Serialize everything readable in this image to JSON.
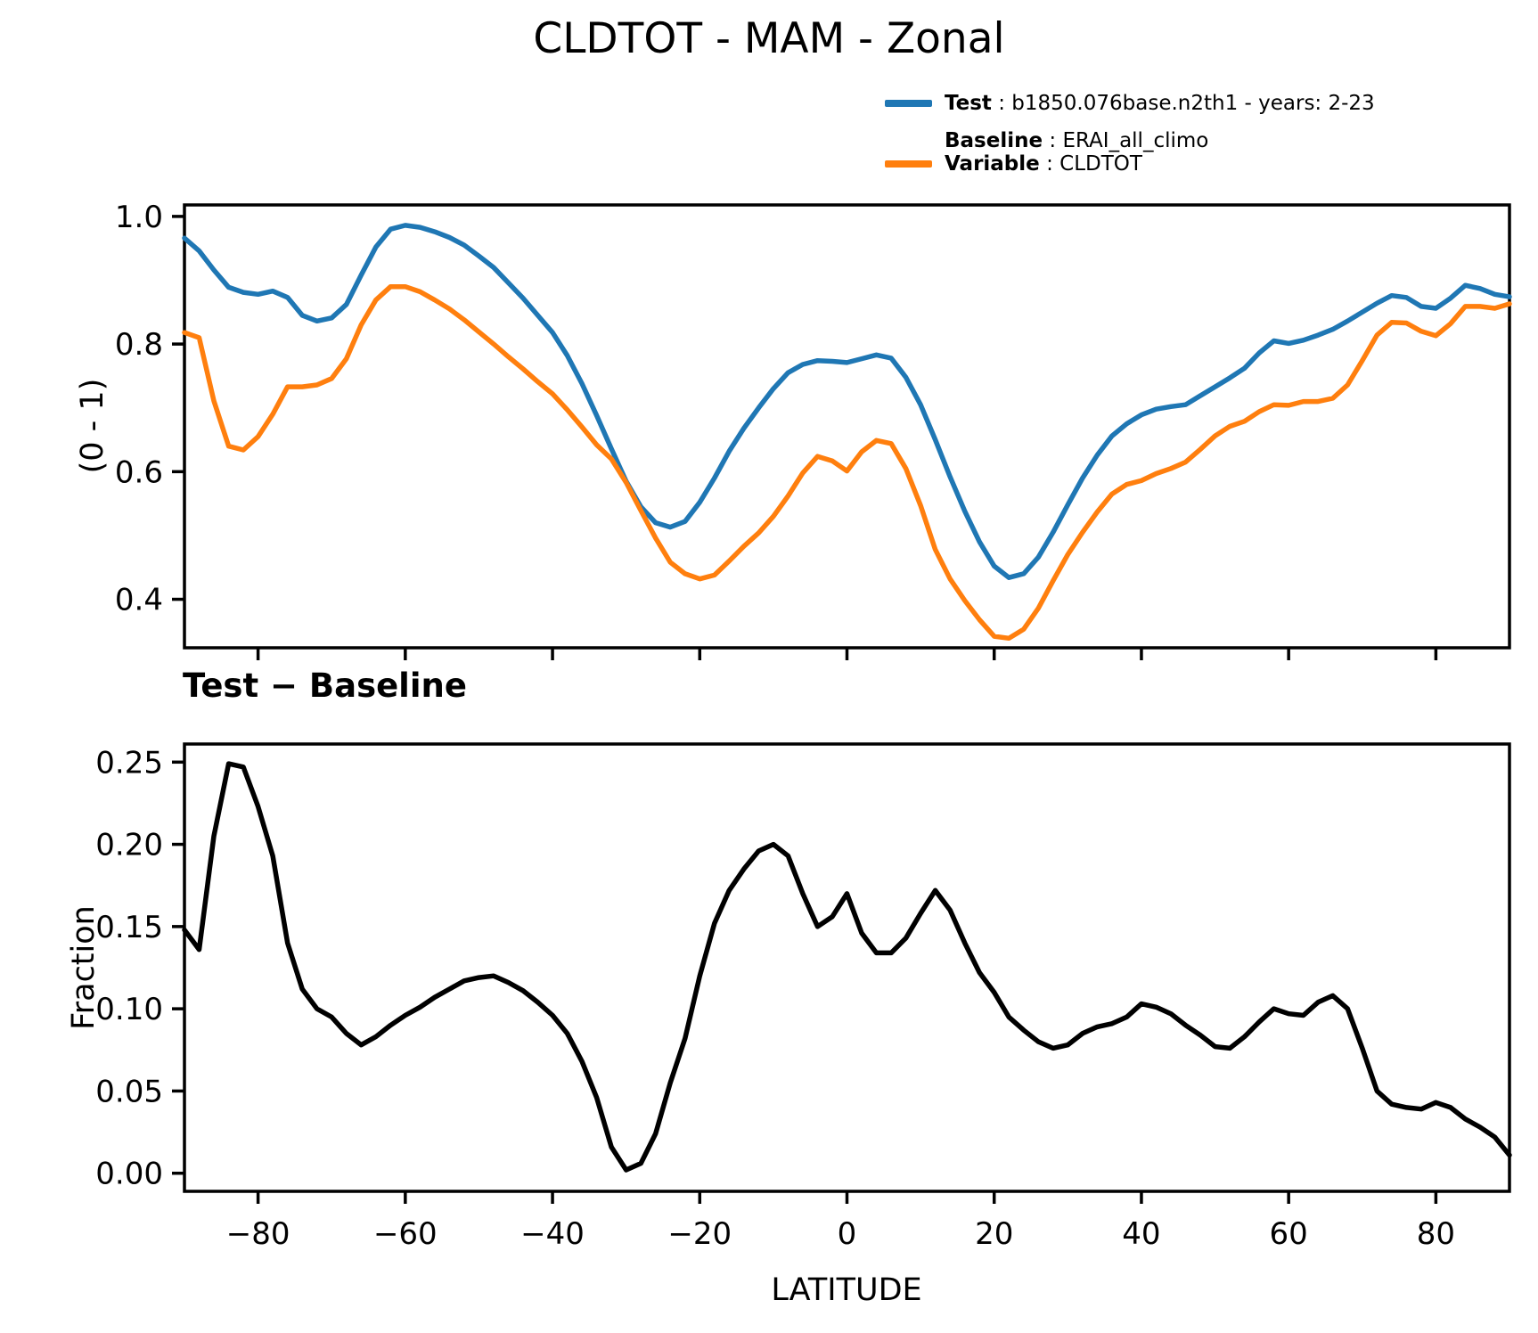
{
  "title": "CLDTOT - MAM - Zonal",
  "legend": {
    "test_label": "Test",
    "test_text": " : b1850.076base.n2th1 - years: 2-23",
    "baseline_label": "Baseline",
    "baseline_text": " : ERAI_all_climo",
    "variable_label": "Variable",
    "variable_text": " : CLDTOT",
    "test_color": "#1f77b4",
    "baseline_color": "#ff7f0e"
  },
  "chart_data": [
    {
      "type": "line",
      "title": "",
      "xlabel": "",
      "ylabel": "(0 - 1)",
      "grid": false,
      "x_range": [
        -90,
        90
      ],
      "ylim": [
        0.324,
        1.018
      ],
      "yticks": [
        1.0,
        0.8,
        0.6,
        0.4
      ],
      "ytick_labels": [
        "1.0",
        "0.8",
        "0.6",
        "0.4"
      ],
      "xticks": [
        -80,
        -60,
        -40,
        -20,
        0,
        20,
        40,
        60,
        80
      ],
      "xtick_labels_visible": false,
      "x": [
        -90,
        -88,
        -86,
        -84,
        -82,
        -80,
        -78,
        -76,
        -74,
        -72,
        -70,
        -68,
        -66,
        -64,
        -62,
        -60,
        -58,
        -56,
        -54,
        -52,
        -50,
        -48,
        -46,
        -44,
        -42,
        -40,
        -38,
        -36,
        -34,
        -32,
        -30,
        -28,
        -26,
        -24,
        -22,
        -20,
        -18,
        -16,
        -14,
        -12,
        -10,
        -8,
        -6,
        -4,
        -2,
        0,
        2,
        4,
        6,
        8,
        10,
        12,
        14,
        16,
        18,
        20,
        22,
        24,
        26,
        28,
        30,
        32,
        34,
        36,
        38,
        40,
        42,
        44,
        46,
        48,
        50,
        52,
        54,
        56,
        58,
        60,
        62,
        64,
        66,
        68,
        70,
        72,
        74,
        76,
        78,
        80,
        82,
        84,
        86,
        88,
        90
      ],
      "series": [
        {
          "name": "Test",
          "color": "#1f77b4",
          "values": [
            0.966,
            0.946,
            0.916,
            0.889,
            0.881,
            0.878,
            0.883,
            0.873,
            0.845,
            0.836,
            0.841,
            0.862,
            0.908,
            0.952,
            0.98,
            0.986,
            0.983,
            0.976,
            0.967,
            0.955,
            0.938,
            0.92,
            0.896,
            0.872,
            0.845,
            0.818,
            0.782,
            0.738,
            0.688,
            0.636,
            0.585,
            0.545,
            0.52,
            0.513,
            0.522,
            0.552,
            0.59,
            0.632,
            0.668,
            0.7,
            0.73,
            0.755,
            0.768,
            0.774,
            0.773,
            0.771,
            0.777,
            0.783,
            0.778,
            0.748,
            0.705,
            0.65,
            0.592,
            0.538,
            0.49,
            0.452,
            0.434,
            0.44,
            0.466,
            0.505,
            0.548,
            0.59,
            0.626,
            0.656,
            0.675,
            0.689,
            0.698,
            0.702,
            0.705,
            0.719,
            0.733,
            0.747,
            0.762,
            0.786,
            0.805,
            0.801,
            0.806,
            0.814,
            0.823,
            0.836,
            0.85,
            0.864,
            0.876,
            0.873,
            0.859,
            0.856,
            0.872,
            0.892,
            0.887,
            0.878,
            0.874
          ]
        },
        {
          "name": "Baseline",
          "color": "#ff7f0e",
          "values": [
            0.818,
            0.81,
            0.711,
            0.64,
            0.634,
            0.655,
            0.69,
            0.733,
            0.733,
            0.736,
            0.746,
            0.777,
            0.83,
            0.869,
            0.89,
            0.89,
            0.882,
            0.869,
            0.855,
            0.838,
            0.819,
            0.8,
            0.78,
            0.761,
            0.741,
            0.722,
            0.697,
            0.67,
            0.642,
            0.62,
            0.583,
            0.539,
            0.496,
            0.458,
            0.44,
            0.432,
            0.438,
            0.46,
            0.483,
            0.504,
            0.53,
            0.562,
            0.598,
            0.624,
            0.617,
            0.601,
            0.631,
            0.649,
            0.644,
            0.605,
            0.547,
            0.478,
            0.432,
            0.398,
            0.368,
            0.342,
            0.339,
            0.353,
            0.386,
            0.429,
            0.47,
            0.505,
            0.537,
            0.565,
            0.58,
            0.586,
            0.597,
            0.605,
            0.615,
            0.635,
            0.656,
            0.671,
            0.679,
            0.694,
            0.705,
            0.704,
            0.71,
            0.71,
            0.715,
            0.736,
            0.774,
            0.814,
            0.834,
            0.833,
            0.82,
            0.813,
            0.832,
            0.859,
            0.859,
            0.856,
            0.863
          ]
        }
      ]
    },
    {
      "type": "line",
      "title": "Test − Baseline",
      "xlabel": "LATITUDE",
      "ylabel": "Fraction",
      "grid": false,
      "x_range": [
        -90,
        90
      ],
      "ylim": [
        -0.011,
        0.261
      ],
      "yticks": [
        0.25,
        0.2,
        0.15,
        0.1,
        0.05,
        0.0
      ],
      "ytick_labels": [
        "0.25",
        "0.20",
        "0.15",
        "0.10",
        "0.05",
        "0.00"
      ],
      "xticks": [
        -80,
        -60,
        -40,
        -20,
        0,
        20,
        40,
        60,
        80
      ],
      "xtick_labels": [
        "−80",
        "−60",
        "−40",
        "−20",
        "0",
        "20",
        "40",
        "60",
        "80"
      ],
      "xtick_labels_visible": true,
      "x": [
        -90,
        -88,
        -86,
        -84,
        -82,
        -80,
        -78,
        -76,
        -74,
        -72,
        -70,
        -68,
        -66,
        -64,
        -62,
        -60,
        -58,
        -56,
        -54,
        -52,
        -50,
        -48,
        -46,
        -44,
        -42,
        -40,
        -38,
        -36,
        -34,
        -32,
        -30,
        -28,
        -26,
        -24,
        -22,
        -20,
        -18,
        -16,
        -14,
        -12,
        -10,
        -8,
        -6,
        -4,
        -2,
        0,
        2,
        4,
        6,
        8,
        10,
        12,
        14,
        16,
        18,
        20,
        22,
        24,
        26,
        28,
        30,
        32,
        34,
        36,
        38,
        40,
        42,
        44,
        46,
        48,
        50,
        52,
        54,
        56,
        58,
        60,
        62,
        64,
        66,
        68,
        70,
        72,
        74,
        76,
        78,
        80,
        82,
        84,
        86,
        88,
        90
      ],
      "series": [
        {
          "name": "Test - Baseline difference",
          "color": "#000000",
          "values": [
            0.148,
            0.136,
            0.205,
            0.249,
            0.247,
            0.223,
            0.193,
            0.14,
            0.112,
            0.1,
            0.095,
            0.085,
            0.078,
            0.083,
            0.09,
            0.096,
            0.101,
            0.107,
            0.112,
            0.117,
            0.119,
            0.12,
            0.116,
            0.111,
            0.104,
            0.096,
            0.085,
            0.068,
            0.046,
            0.016,
            0.002,
            0.006,
            0.024,
            0.055,
            0.082,
            0.12,
            0.152,
            0.172,
            0.185,
            0.196,
            0.2,
            0.193,
            0.17,
            0.15,
            0.156,
            0.17,
            0.146,
            0.134,
            0.134,
            0.143,
            0.158,
            0.172,
            0.16,
            0.14,
            0.122,
            0.11,
            0.095,
            0.087,
            0.08,
            0.076,
            0.078,
            0.085,
            0.089,
            0.091,
            0.095,
            0.103,
            0.101,
            0.097,
            0.09,
            0.084,
            0.077,
            0.076,
            0.083,
            0.092,
            0.1,
            0.097,
            0.096,
            0.104,
            0.108,
            0.1,
            0.076,
            0.05,
            0.042,
            0.04,
            0.039,
            0.043,
            0.04,
            0.033,
            0.028,
            0.022,
            0.011
          ]
        }
      ]
    }
  ]
}
